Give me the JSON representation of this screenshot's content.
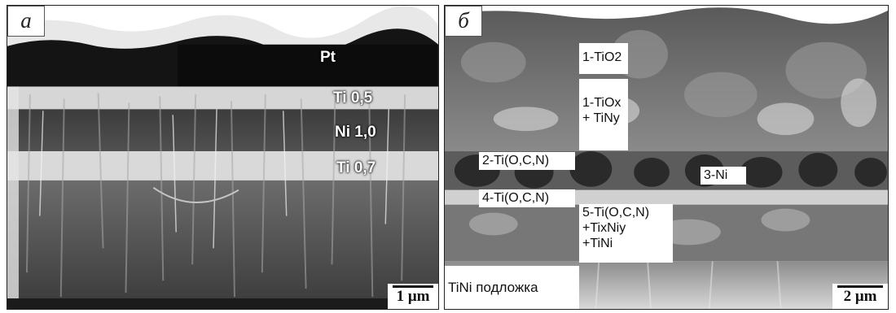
{
  "panel_a": {
    "letter": "a",
    "labels": {
      "pt": "Pt",
      "ti_top": "Ti 0,5",
      "ni": "Ni 1,0",
      "ti_bottom": "Ti 0,7"
    },
    "scale": "1 μm"
  },
  "panel_b": {
    "letter": "б",
    "labels": {
      "tio2": "1-TiO2",
      "tiox": "1-TiOx\n+ TiNy",
      "ti_ocn_2": "2-Ti(O,C,N)",
      "ni3": "3-Ni",
      "ti_ocn_4": "4-Ti(O,C,N)",
      "ti_ocn_5": "5-Ti(O,C,N)\n+TixNiy\n+TiNi",
      "substrate": "TiNi подложка"
    },
    "scale": "2 μm"
  }
}
